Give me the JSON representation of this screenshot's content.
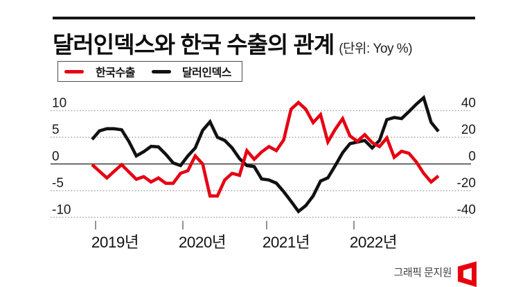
{
  "header": {
    "title": "달러인덱스와 한국 수출의 관계",
    "unit_note": "(단위: Yoy %)"
  },
  "legend": {
    "items": [
      {
        "label": "한국수출",
        "color": "#e60012"
      },
      {
        "label": "달러인덱스",
        "color": "#111111"
      }
    ]
  },
  "chart_data": {
    "type": "line",
    "title": "달러인덱스와 한국 수출의 관계",
    "unit": "Yoy %",
    "x_frequency": "monthly",
    "x_range": [
      "2019-01",
      "2022-12"
    ],
    "x_tick_labels": [
      "2019년",
      "2020년",
      "2021년",
      "2022년"
    ],
    "left_axis": {
      "ticks": [
        10,
        5,
        0,
        -5,
        -10
      ],
      "range": [
        -12.5,
        12.5
      ]
    },
    "right_axis": {
      "ticks": [
        40,
        20,
        0,
        -20,
        -40
      ],
      "range": [
        -50,
        50
      ]
    },
    "grid": "dotted horizontal, solid zero line",
    "legend_position": "top-left boxed",
    "colors": {
      "export_red": "#e60012",
      "index_black": "#111111",
      "grid_gray": "#a3a3a3",
      "zero_line": "#3a3a3a",
      "tick_gray": "#777777"
    },
    "series": [
      {
        "name": "달러인덱스",
        "axis": "left",
        "color": "#111111",
        "values": [
          4.6,
          6.2,
          6.6,
          6.6,
          6.4,
          4.2,
          1.5,
          2.3,
          3.3,
          3.2,
          1.8,
          0.2,
          -0.3,
          1.5,
          3.0,
          6.3,
          7.9,
          5.0,
          4.4,
          3.0,
          1.0,
          -0.3,
          -0.5,
          -2.8,
          -3.0,
          -3.6,
          -5.2,
          -7.0,
          -8.9,
          -7.8,
          -6.0,
          -3.2,
          -2.6,
          -0.3,
          2.1,
          3.8,
          4.1,
          4.4,
          3.0,
          4.4,
          8.3,
          8.7,
          8.5,
          9.8,
          11.2,
          12.4,
          7.8,
          6.1
        ]
      },
      {
        "name": "한국수출",
        "axis": "right",
        "color": "#e60012",
        "values": [
          -0.5,
          -5.5,
          -10.5,
          -5.5,
          -0.5,
          -6.0,
          -11.5,
          -9.5,
          -13.5,
          -10.5,
          -14.5,
          -14.5,
          -7.0,
          -5.0,
          6.0,
          0.0,
          -24.0,
          -24.0,
          -12.0,
          -7.0,
          -8.5,
          10.0,
          3.5,
          9.0,
          13.0,
          10.0,
          18.0,
          41.0,
          46.0,
          41.0,
          31.0,
          37.0,
          16.5,
          26.0,
          34.0,
          21.0,
          17.0,
          22.0,
          16.0,
          13.0,
          19.5,
          5.0,
          9.5,
          8.0,
          1.5,
          -7.0,
          -13.5,
          -9.0
        ]
      }
    ]
  },
  "footer": {
    "credit": "그래픽 문지원",
    "logo": "asia-economy-logo",
    "logo_color": "#e8000d"
  }
}
